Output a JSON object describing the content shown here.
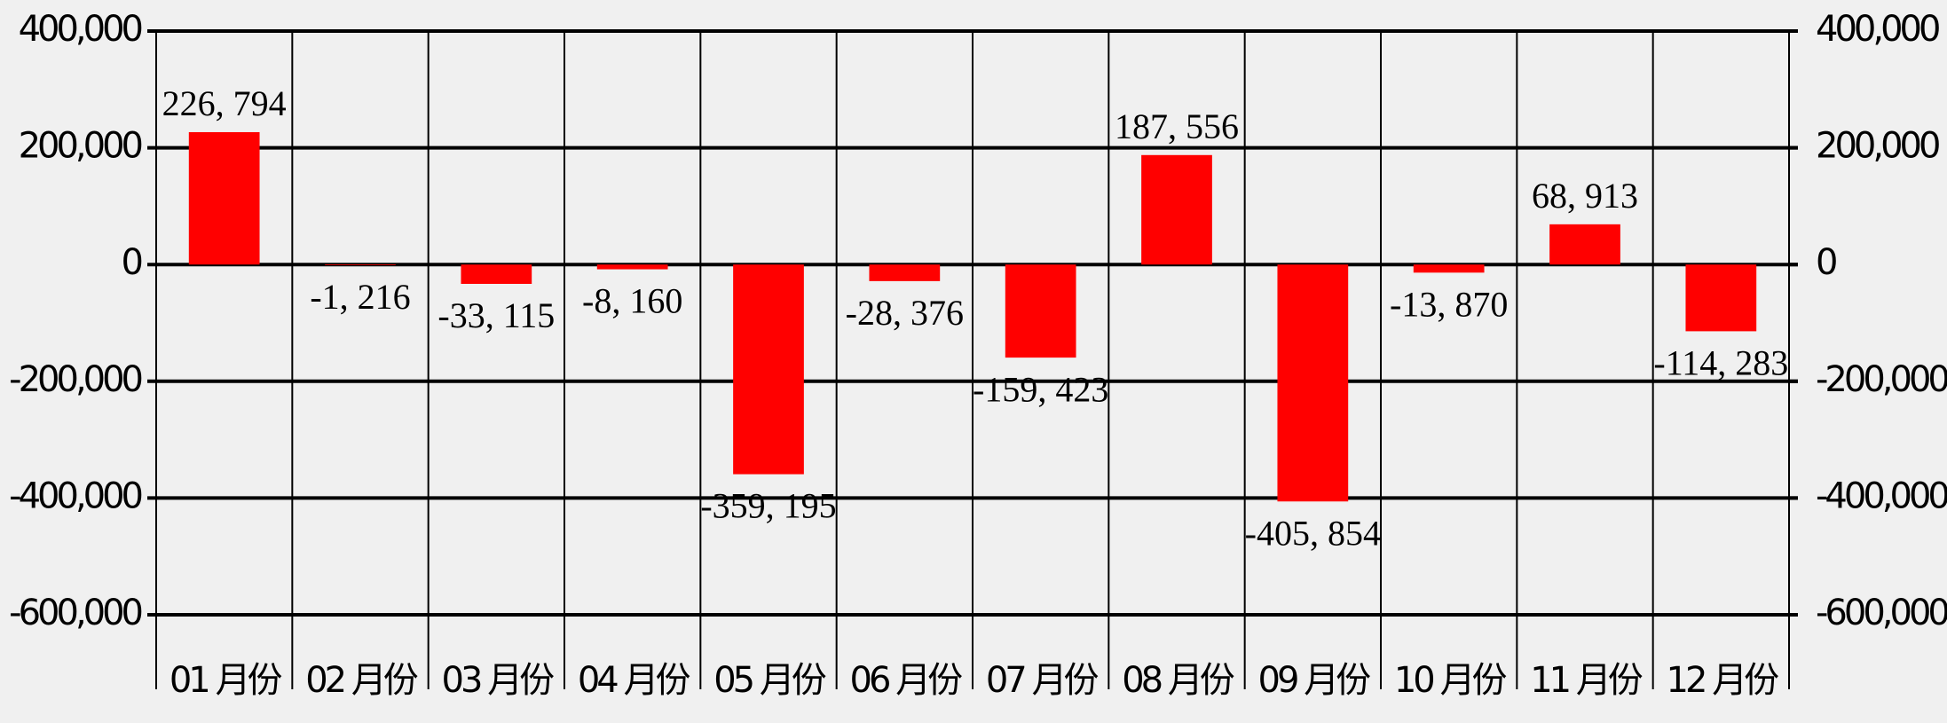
{
  "chart_data": {
    "type": "bar",
    "categories": [
      "01 月份",
      "02 月份",
      "03 月份",
      "04 月份",
      "05 月份",
      "06 月份",
      "07 月份",
      "08 月份",
      "09 月份",
      "10 月份",
      "11 月份",
      "12 月份"
    ],
    "values": [
      226794,
      -1216,
      -33115,
      -8160,
      -359195,
      -28376,
      -159423,
      187556,
      -405854,
      -13870,
      68913,
      -114283
    ],
    "value_labels": [
      "226, 794",
      "-1, 216",
      "-33, 115",
      "-8, 160",
      "-359, 195",
      "-28, 376",
      "-159, 423",
      "187, 556",
      "-405, 854",
      "-13, 870",
      "68, 913",
      "-114, 283"
    ],
    "color": "#ff0000",
    "ylim": [
      -600000,
      400000
    ],
    "yticks": [
      {
        "value": -600000,
        "label": "-600,000"
      },
      {
        "value": -400000,
        "label": "-400,000"
      },
      {
        "value": -200000,
        "label": "-200,000"
      },
      0,
      {
        "value": 200000,
        "label": "200,000"
      },
      {
        "value": 400000,
        "label": "400,000"
      }
    ],
    "y2lim": [
      -600000,
      400000
    ],
    "y2ticks": [
      {
        "value": -600000,
        "label": "-600,000"
      },
      {
        "value": -400000,
        "label": "-400,000"
      },
      {
        "value": -200000,
        "label": "-200,000"
      },
      0,
      {
        "value": 200000,
        "label": "200,000"
      },
      {
        "value": 400000,
        "label": "400,000"
      }
    ],
    "grid": true
  }
}
